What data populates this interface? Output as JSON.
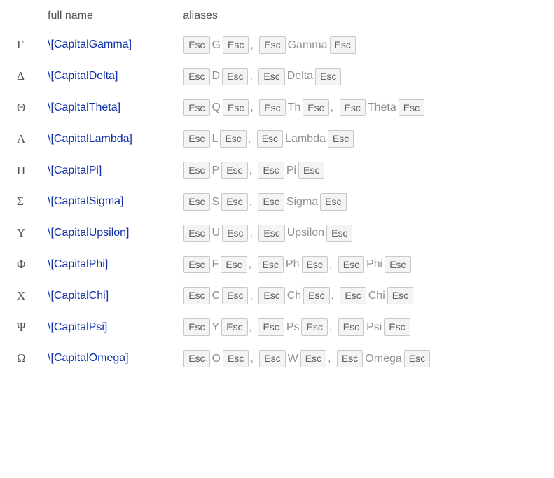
{
  "headers": {
    "fullname": "full name",
    "aliases": "aliases"
  },
  "esc_label": "Esc",
  "link_color": "#1030aa",
  "key_bg": "#f4f4f4",
  "key_border": "#c8c8c8",
  "rows": [
    {
      "glyph": "Γ",
      "name": "\\[CapitalGamma]",
      "aliases": [
        [
          "G"
        ],
        [
          "Gamma"
        ]
      ]
    },
    {
      "glyph": "Δ",
      "name": "\\[CapitalDelta]",
      "aliases": [
        [
          "D"
        ],
        [
          "Delta"
        ]
      ]
    },
    {
      "glyph": "Θ",
      "name": "\\[CapitalTheta]",
      "aliases": [
        [
          "Q"
        ],
        [
          "Th"
        ],
        [
          "Theta"
        ]
      ]
    },
    {
      "glyph": "Λ",
      "name": "\\[CapitalLambda]",
      "aliases": [
        [
          "L"
        ],
        [
          "Lambda"
        ]
      ]
    },
    {
      "glyph": "Π",
      "name": "\\[CapitalPi]",
      "aliases": [
        [
          "P"
        ],
        [
          "Pi"
        ]
      ]
    },
    {
      "glyph": "Σ",
      "name": "\\[CapitalSigma]",
      "aliases": [
        [
          "S"
        ],
        [
          "Sigma"
        ]
      ]
    },
    {
      "glyph": "Υ",
      "name": "\\[CapitalUpsilon]",
      "aliases": [
        [
          "U"
        ],
        [
          "Upsilon"
        ]
      ]
    },
    {
      "glyph": "Φ",
      "name": "\\[CapitalPhi]",
      "aliases": [
        [
          "F"
        ],
        [
          "Ph"
        ],
        [
          "Phi"
        ]
      ]
    },
    {
      "glyph": "Χ",
      "name": "\\[CapitalChi]",
      "aliases": [
        [
          "C"
        ],
        [
          "Ch"
        ],
        [
          "Chi"
        ]
      ]
    },
    {
      "glyph": "Ψ",
      "name": "\\[CapitalPsi]",
      "aliases": [
        [
          "Y"
        ],
        [
          "Ps"
        ],
        [
          "Psi"
        ]
      ]
    },
    {
      "glyph": "Ω",
      "name": "\\[CapitalOmega]",
      "aliases": [
        [
          "O"
        ],
        [
          "W"
        ],
        [
          "Omega"
        ]
      ]
    }
  ]
}
